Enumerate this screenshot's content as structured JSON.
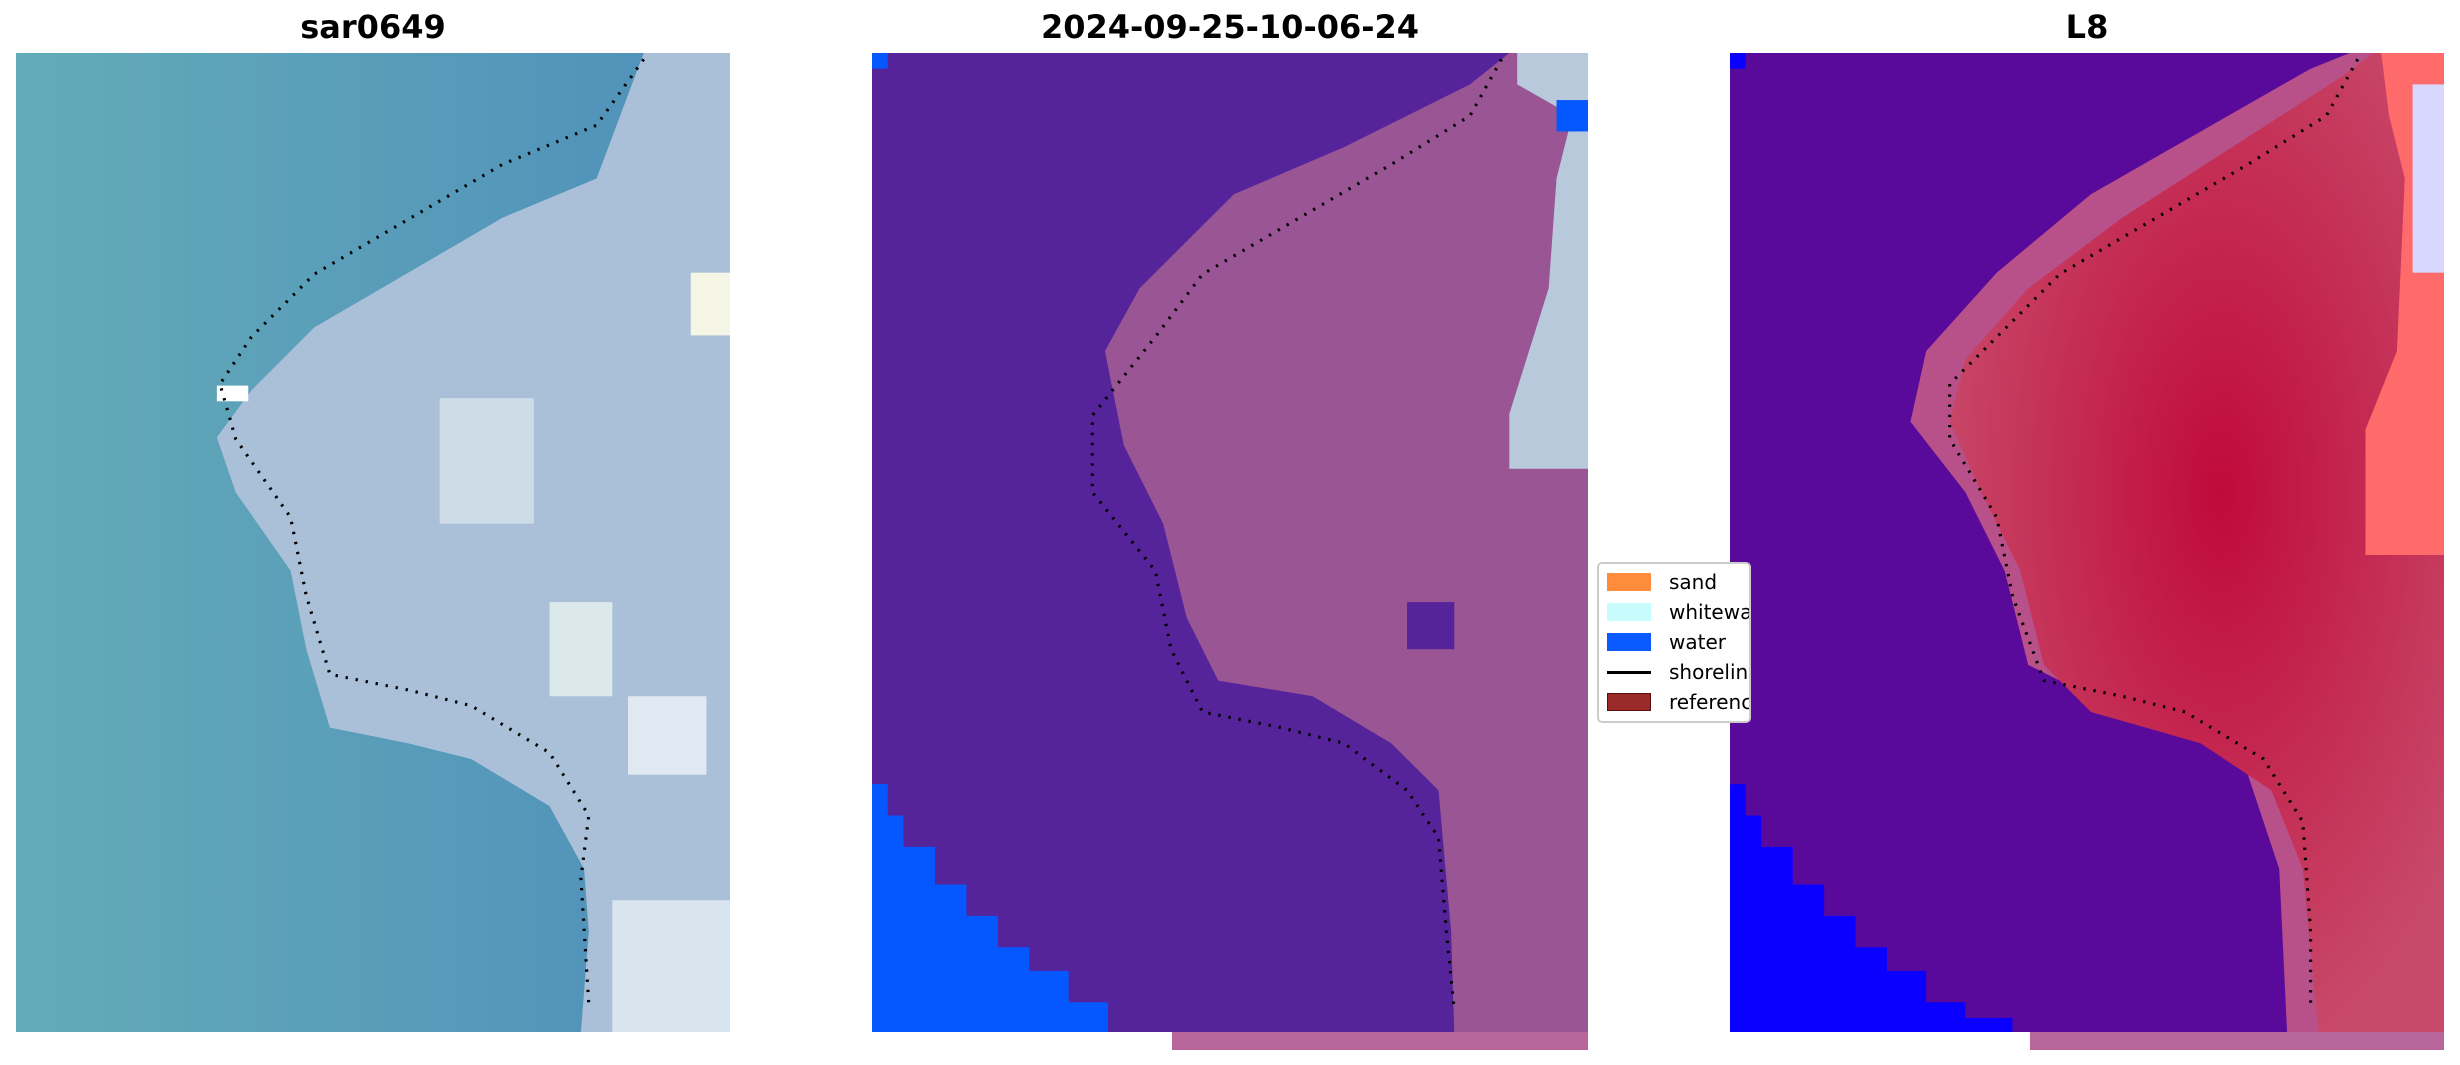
{
  "panels": [
    {
      "title": "sar0649",
      "water_color": "#5d9fb5",
      "land_color": "#a9bfd6"
    },
    {
      "title": "2024-09-25-10-06-24",
      "water_color": "#55249a",
      "land_color": "#9a5594"
    },
    {
      "title": "L8",
      "water_color": "#5a0a9a",
      "land_color": "#c8284e"
    }
  ],
  "legend": {
    "items": [
      {
        "label": "sand",
        "color": "#ff8c3a",
        "kind": "patch"
      },
      {
        "label": "whitewater",
        "color": "#c8fcfc",
        "kind": "patch"
      },
      {
        "label": "water",
        "color": "#0a5aff",
        "kind": "patch"
      },
      {
        "label": "shoreline",
        "color": "#000000",
        "kind": "line"
      },
      {
        "label": "reference shoreline",
        "color": "#9a2a2a",
        "kind": "patch"
      }
    ]
  },
  "colors": {
    "classified_water": "#0558ff",
    "l8_water": "#0a00ff",
    "strip": "#b7669b"
  }
}
